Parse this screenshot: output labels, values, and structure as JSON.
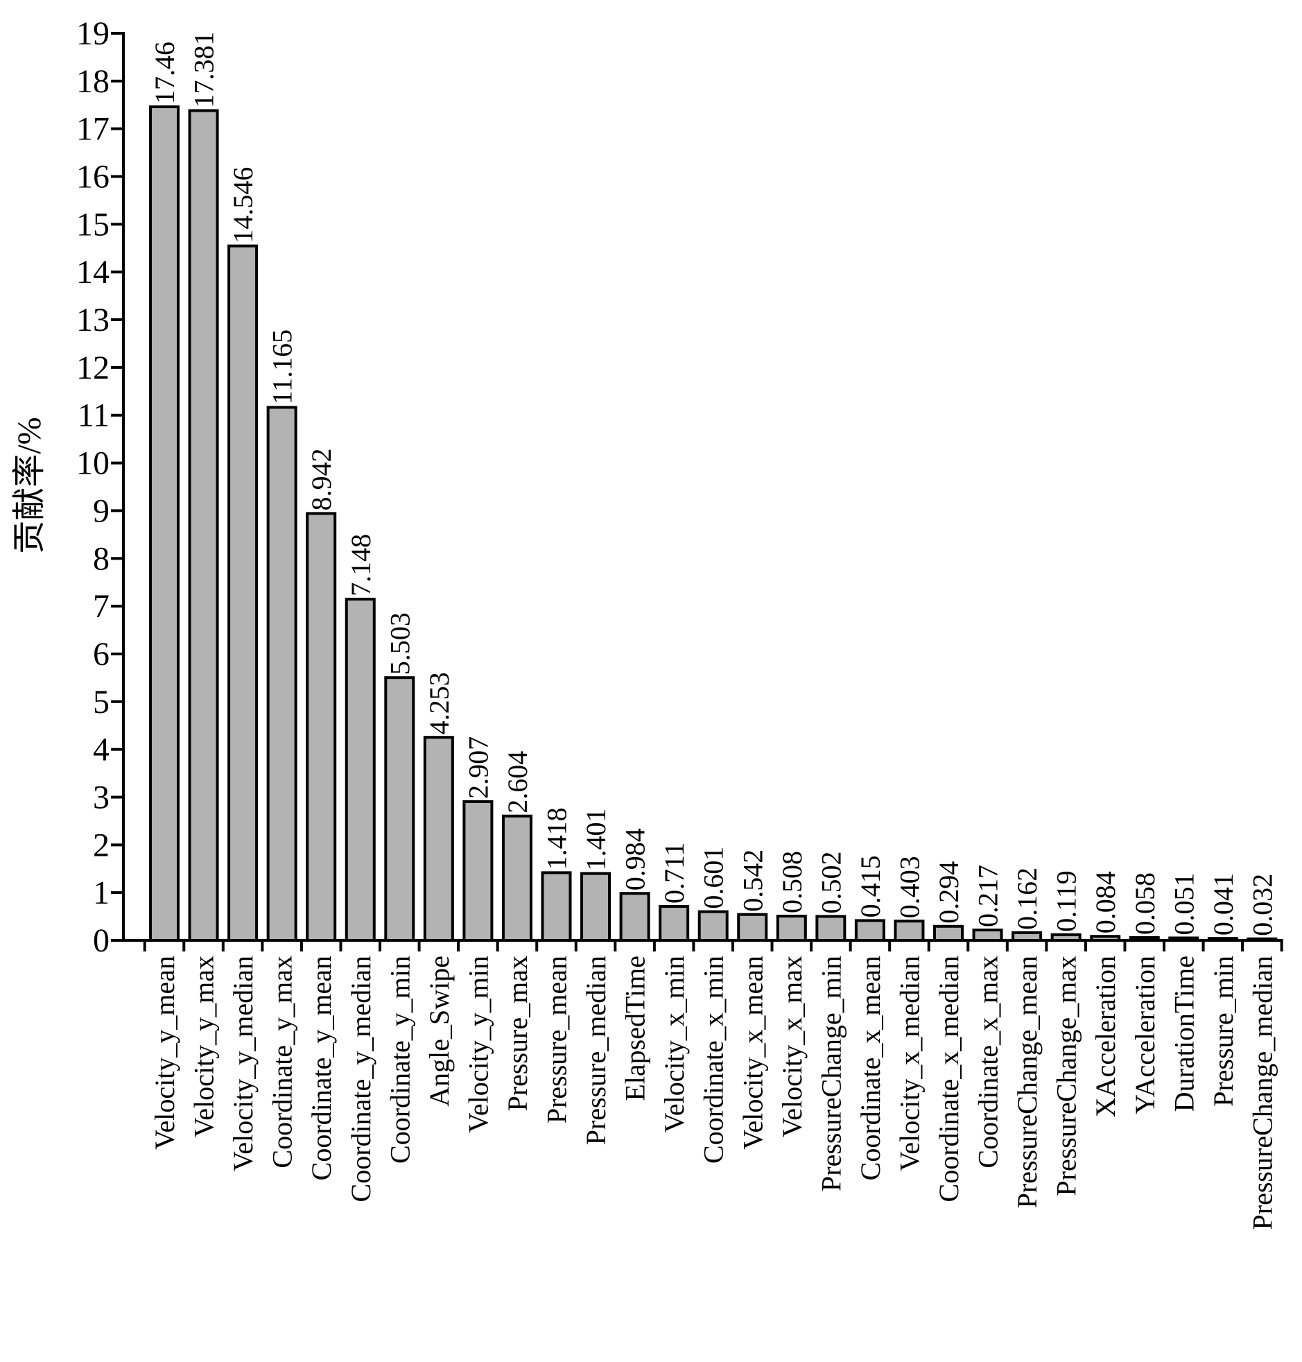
{
  "chart_data": {
    "type": "bar",
    "ylabel": "贡献率/%",
    "xlabel": "",
    "ylim": [
      0,
      19
    ],
    "ytick_step": 1,
    "grid": false,
    "bar_color": "#b3b3b3",
    "categories": [
      "Velocity_y_mean",
      "Velocity_y_max",
      "Velocity_y_median",
      "Coordinate_y_max",
      "Coordinate_y_mean",
      "Coordinate_y_median",
      "Coordinate_y_min",
      "Angle_Swipe",
      "Velocity_y_min",
      "Pressure_max",
      "Pressure_mean",
      "Pressure_median",
      "ElapsedTime",
      "Velocity_x_min",
      "Coordinate_x_min",
      "Velocity_x_mean",
      "Velocity_x_max",
      "PressureChange_min",
      "Coordinate_x_mean",
      "Velocity_x_median",
      "Coordinate_x_median",
      "Coordinate_x_max",
      "PressureChange_mean",
      "PressureChange_max",
      "XAcceleration",
      "YAcceleration",
      "DurationTime",
      "Pressure_min",
      "PressureChange_median"
    ],
    "values": [
      17.46,
      17.381,
      14.546,
      11.165,
      8.942,
      7.148,
      5.503,
      4.253,
      2.907,
      2.604,
      1.418,
      1.401,
      0.984,
      0.711,
      0.601,
      0.542,
      0.508,
      0.502,
      0.415,
      0.403,
      0.294,
      0.217,
      0.162,
      0.119,
      0.084,
      0.058,
      0.051,
      0.041,
      0.032
    ],
    "value_labels": [
      "17.46",
      "17.381",
      "14.546",
      "11.165",
      "8.942",
      "7.148",
      "5.503",
      "4.253",
      "2.907",
      "2.604",
      "1.418",
      "1.401",
      "0.984",
      "0.711",
      "0.601",
      "0.542",
      "0.508",
      "0.502",
      "0.415",
      "0.403",
      "0.294",
      "0.217",
      "0.162",
      "0.119",
      "0.084",
      "0.058",
      "0.051",
      "0.041",
      "0.032"
    ]
  }
}
